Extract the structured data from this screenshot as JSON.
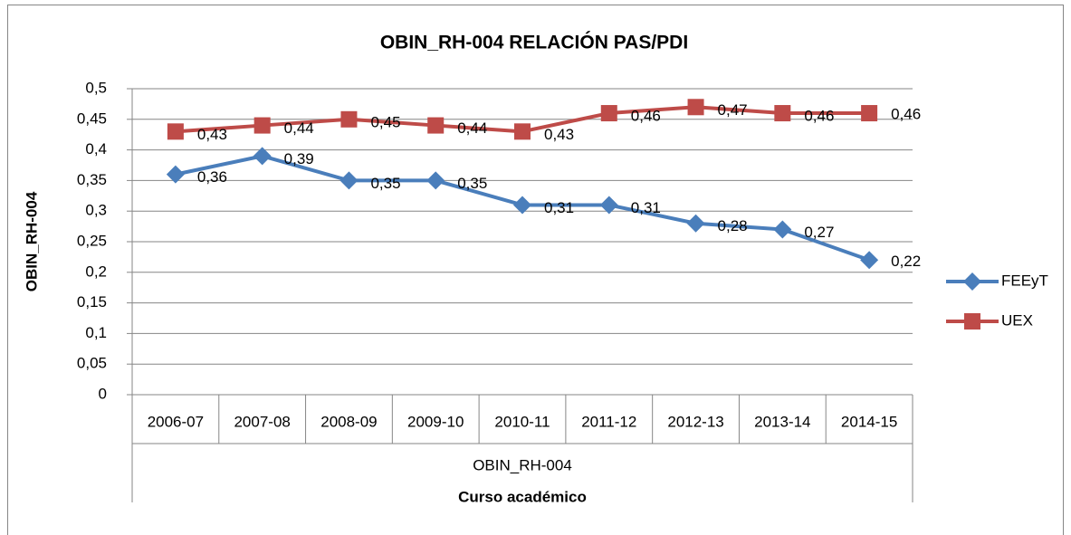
{
  "chart_data": {
    "type": "line",
    "title": "OBIN_RH-004 RELACIÓN PAS/PDI",
    "y_label": "OBIN_RH-004",
    "x_label": "Curso académico",
    "category_group": "OBIN_RH-004",
    "categories": [
      "2006-07",
      "2007-08",
      "2008-09",
      "2009-10",
      "2010-11",
      "2011-12",
      "2012-13",
      "2013-14",
      "2014-15"
    ],
    "series": [
      {
        "name": "FEEyT",
        "color": "#4a7ebb",
        "marker": "diamond",
        "values": [
          0.36,
          0.39,
          0.35,
          0.35,
          0.31,
          0.31,
          0.28,
          0.27,
          0.22
        ],
        "value_labels": [
          "0,36",
          "0,39",
          "0,35",
          "0,35",
          "0,31",
          "0,31",
          "0,28",
          "0,27",
          "0,22"
        ]
      },
      {
        "name": "UEX",
        "color": "#be4b48",
        "marker": "square",
        "values": [
          0.43,
          0.44,
          0.45,
          0.44,
          0.43,
          0.46,
          0.47,
          0.46,
          0.46
        ],
        "value_labels": [
          "0,43",
          "0,44",
          "0,45",
          "0,44",
          "0,43",
          "0,46",
          "0,47",
          "0,46",
          "0,46"
        ]
      }
    ],
    "ylim": [
      0,
      0.5
    ],
    "yticks": [
      0,
      {
        "value": 0.05,
        "label": "0,05"
      },
      {
        "value": 0.1,
        "label": "0,1"
      },
      {
        "value": 0.15,
        "label": "0,15"
      },
      {
        "value": 0.2,
        "label": "0,2"
      },
      {
        "value": 0.25,
        "label": "0,25"
      },
      {
        "value": 0.3,
        "label": "0,3"
      },
      {
        "value": 0.35,
        "label": "0,35"
      },
      {
        "value": 0.4,
        "label": "0,4"
      },
      {
        "value": 0.45,
        "label": "0,45"
      },
      {
        "value": 0.5,
        "label": "0,5"
      }
    ],
    "grid": true,
    "legend": "right"
  }
}
